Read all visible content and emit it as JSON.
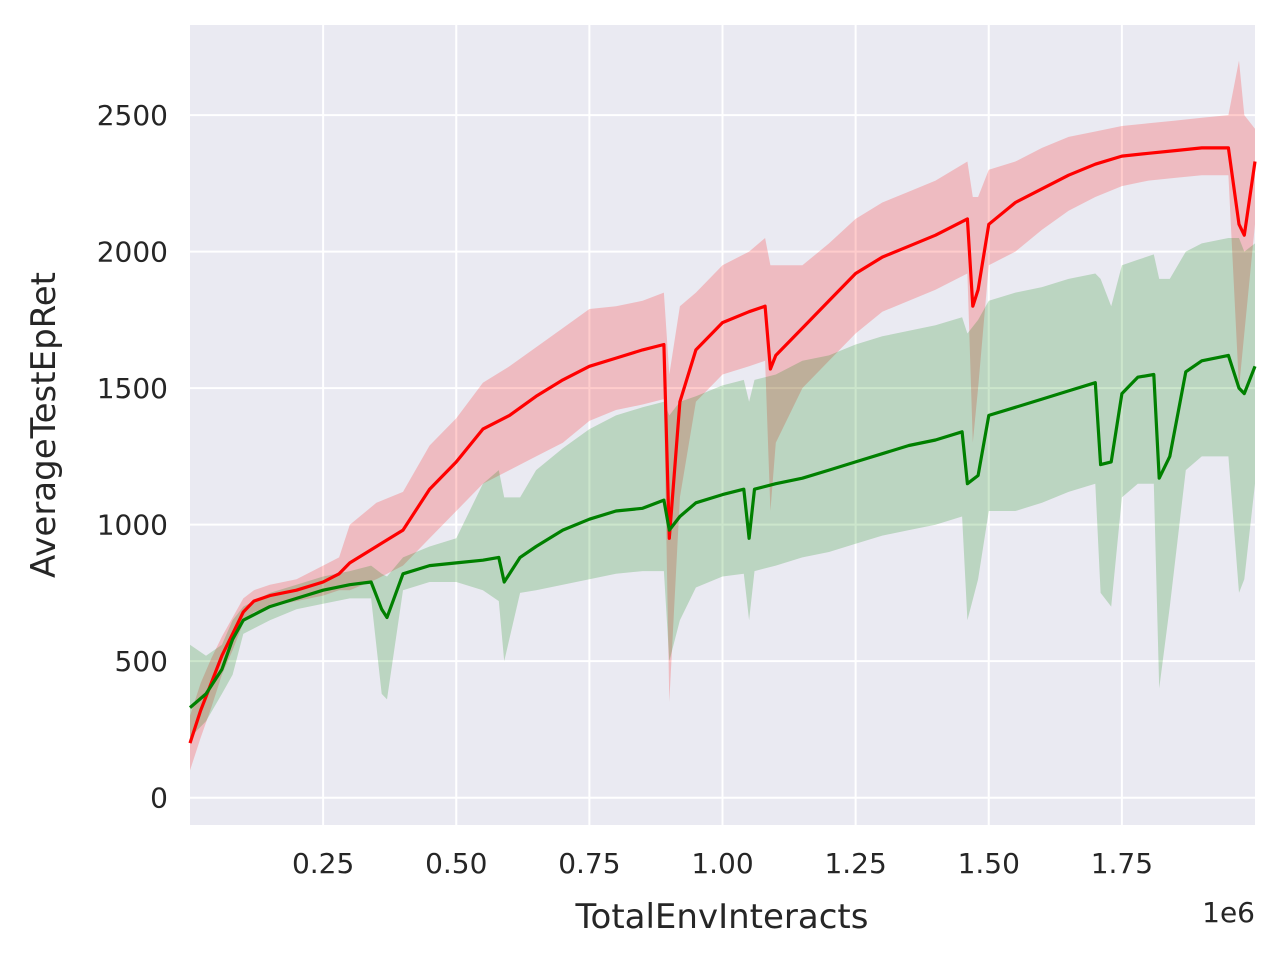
{
  "chart_data": {
    "type": "line",
    "title": "",
    "xlabel": "TotalEnvInteracts",
    "ylabel": "AverageTestEpRet",
    "x_offset_label": "1e6",
    "xlim": [
      0.0,
      2.0
    ],
    "ylim": [
      -100,
      2830
    ],
    "xticks": [
      0.25,
      0.5,
      0.75,
      1.0,
      1.25,
      1.5,
      1.75
    ],
    "xtick_labels": [
      "0.25",
      "0.50",
      "0.75",
      "1.00",
      "1.25",
      "1.50",
      "1.75"
    ],
    "yticks": [
      0,
      500,
      1000,
      1500,
      2000,
      2500
    ],
    "ytick_labels": [
      "0",
      "500",
      "1000",
      "1500",
      "2000",
      "2500"
    ],
    "grid": true,
    "background": "#eaeaf2",
    "grid_color": "#ffffff",
    "series": [
      {
        "color": "#ff0000",
        "band_color": "#ff0000",
        "band_opacity": 0.2,
        "points": [
          [
            0.0,
            200,
            100,
            300
          ],
          [
            0.02,
            320,
            220,
            420
          ],
          [
            0.04,
            420,
            330,
            510
          ],
          [
            0.06,
            520,
            450,
            590
          ],
          [
            0.08,
            600,
            540,
            660
          ],
          [
            0.1,
            680,
            640,
            730
          ],
          [
            0.12,
            720,
            680,
            760
          ],
          [
            0.15,
            740,
            700,
            780
          ],
          [
            0.2,
            760,
            720,
            800
          ],
          [
            0.25,
            790,
            740,
            850
          ],
          [
            0.28,
            820,
            760,
            880
          ],
          [
            0.3,
            860,
            760,
            1000
          ],
          [
            0.35,
            920,
            800,
            1080
          ],
          [
            0.4,
            980,
            850,
            1120
          ],
          [
            0.45,
            1130,
            950,
            1290
          ],
          [
            0.5,
            1230,
            1050,
            1390
          ],
          [
            0.55,
            1350,
            1150,
            1520
          ],
          [
            0.6,
            1400,
            1200,
            1580
          ],
          [
            0.65,
            1470,
            1250,
            1650
          ],
          [
            0.7,
            1530,
            1300,
            1720
          ],
          [
            0.75,
            1580,
            1380,
            1790
          ],
          [
            0.8,
            1610,
            1420,
            1800
          ],
          [
            0.85,
            1640,
            1440,
            1820
          ],
          [
            0.89,
            1660,
            1460,
            1850
          ],
          [
            0.9,
            950,
            350,
            1550
          ],
          [
            0.92,
            1450,
            1100,
            1800
          ],
          [
            0.95,
            1640,
            1450,
            1850
          ],
          [
            1.0,
            1740,
            1550,
            1950
          ],
          [
            1.05,
            1780,
            1580,
            2000
          ],
          [
            1.08,
            1800,
            1600,
            2050
          ],
          [
            1.09,
            1570,
            1050,
            1950
          ],
          [
            1.1,
            1620,
            1300,
            1950
          ],
          [
            1.15,
            1720,
            1500,
            1950
          ],
          [
            1.2,
            1820,
            1600,
            2030
          ],
          [
            1.25,
            1920,
            1700,
            2120
          ],
          [
            1.3,
            1980,
            1780,
            2180
          ],
          [
            1.35,
            2020,
            1820,
            2220
          ],
          [
            1.4,
            2060,
            1860,
            2260
          ],
          [
            1.46,
            2120,
            1920,
            2330
          ],
          [
            1.47,
            1800,
            1300,
            2200
          ],
          [
            1.48,
            1860,
            1500,
            2200
          ],
          [
            1.5,
            2100,
            1950,
            2300
          ],
          [
            1.55,
            2180,
            2000,
            2330
          ],
          [
            1.6,
            2230,
            2080,
            2380
          ],
          [
            1.65,
            2280,
            2150,
            2420
          ],
          [
            1.7,
            2320,
            2200,
            2440
          ],
          [
            1.75,
            2350,
            2240,
            2460
          ],
          [
            1.8,
            2360,
            2260,
            2470
          ],
          [
            1.85,
            2370,
            2270,
            2480
          ],
          [
            1.9,
            2380,
            2280,
            2490
          ],
          [
            1.95,
            2380,
            2280,
            2500
          ],
          [
            1.97,
            2100,
            1500,
            2700
          ],
          [
            1.98,
            2060,
            1700,
            2500
          ],
          [
            2.0,
            2330,
            2100,
            2450
          ]
        ]
      },
      {
        "color": "#008000",
        "band_color": "#008000",
        "band_opacity": 0.2,
        "points": [
          [
            0.0,
            330,
            220,
            560
          ],
          [
            0.03,
            380,
            280,
            520
          ],
          [
            0.06,
            470,
            380,
            560
          ],
          [
            0.08,
            580,
            450,
            650
          ],
          [
            0.1,
            650,
            600,
            700
          ],
          [
            0.15,
            700,
            650,
            750
          ],
          [
            0.2,
            730,
            690,
            780
          ],
          [
            0.25,
            760,
            710,
            810
          ],
          [
            0.3,
            780,
            730,
            830
          ],
          [
            0.34,
            790,
            730,
            850
          ],
          [
            0.36,
            690,
            380,
            820
          ],
          [
            0.37,
            660,
            360,
            810
          ],
          [
            0.4,
            820,
            760,
            880
          ],
          [
            0.45,
            850,
            790,
            920
          ],
          [
            0.5,
            860,
            790,
            950
          ],
          [
            0.55,
            870,
            760,
            1150
          ],
          [
            0.58,
            880,
            720,
            1200
          ],
          [
            0.59,
            790,
            500,
            1100
          ],
          [
            0.62,
            880,
            750,
            1100
          ],
          [
            0.65,
            920,
            760,
            1200
          ],
          [
            0.7,
            980,
            780,
            1280
          ],
          [
            0.75,
            1020,
            800,
            1350
          ],
          [
            0.8,
            1050,
            820,
            1400
          ],
          [
            0.85,
            1060,
            830,
            1430
          ],
          [
            0.89,
            1090,
            830,
            1450
          ],
          [
            0.9,
            980,
            500,
            1400
          ],
          [
            0.92,
            1030,
            650,
            1450
          ],
          [
            0.95,
            1080,
            770,
            1470
          ],
          [
            1.0,
            1110,
            810,
            1510
          ],
          [
            1.04,
            1130,
            820,
            1530
          ],
          [
            1.05,
            950,
            650,
            1450
          ],
          [
            1.06,
            1130,
            830,
            1530
          ],
          [
            1.1,
            1150,
            850,
            1550
          ],
          [
            1.15,
            1170,
            880,
            1600
          ],
          [
            1.2,
            1200,
            900,
            1620
          ],
          [
            1.25,
            1230,
            930,
            1660
          ],
          [
            1.3,
            1260,
            960,
            1690
          ],
          [
            1.35,
            1290,
            980,
            1710
          ],
          [
            1.4,
            1310,
            1000,
            1730
          ],
          [
            1.45,
            1340,
            1030,
            1760
          ],
          [
            1.46,
            1150,
            650,
            1700
          ],
          [
            1.48,
            1180,
            800,
            1750
          ],
          [
            1.5,
            1400,
            1050,
            1820
          ],
          [
            1.55,
            1430,
            1050,
            1850
          ],
          [
            1.6,
            1460,
            1080,
            1870
          ],
          [
            1.65,
            1490,
            1120,
            1900
          ],
          [
            1.7,
            1520,
            1150,
            1920
          ],
          [
            1.71,
            1220,
            750,
            1900
          ],
          [
            1.73,
            1230,
            700,
            1800
          ],
          [
            1.75,
            1480,
            1100,
            1950
          ],
          [
            1.78,
            1540,
            1150,
            1970
          ],
          [
            1.81,
            1550,
            1150,
            1990
          ],
          [
            1.82,
            1170,
            400,
            1900
          ],
          [
            1.84,
            1250,
            700,
            1900
          ],
          [
            1.87,
            1560,
            1200,
            2000
          ],
          [
            1.9,
            1600,
            1250,
            2030
          ],
          [
            1.95,
            1620,
            1250,
            2050
          ],
          [
            1.97,
            1500,
            750,
            2050
          ],
          [
            1.98,
            1480,
            800,
            2000
          ],
          [
            2.0,
            1580,
            1150,
            2030
          ]
        ]
      }
    ]
  }
}
